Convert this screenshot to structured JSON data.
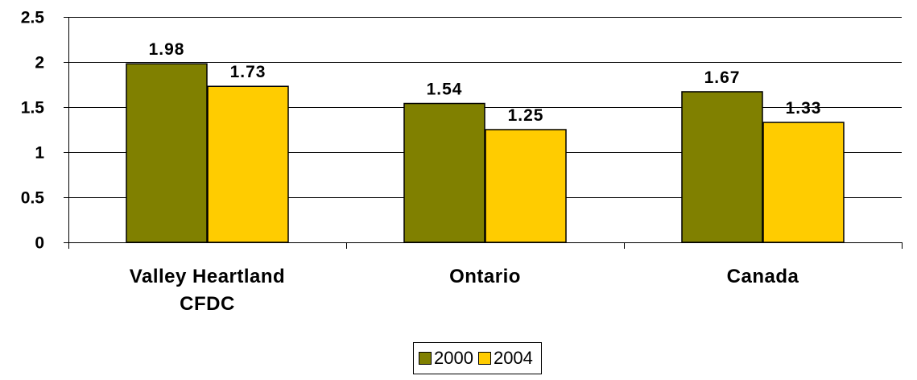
{
  "chart_data": {
    "type": "bar",
    "title": "",
    "xlabel": "",
    "ylabel": "",
    "categories": [
      [
        "Valley Heartland",
        "CFDC"
      ],
      [
        "Ontario"
      ],
      [
        "Canada"
      ]
    ],
    "series": [
      {
        "name": "2000",
        "values": [
          1.98,
          1.54,
          1.67
        ],
        "color": "#808000"
      },
      {
        "name": "2004",
        "values": [
          1.73,
          1.25,
          1.33
        ],
        "color": "#FFCC00"
      }
    ],
    "data_labels": [
      [
        "1.98",
        "1.54",
        "1.67"
      ],
      [
        "1.73",
        "1.25",
        "1.33"
      ]
    ],
    "ylim": [
      0,
      2.5
    ],
    "yticks": [
      0,
      0.5,
      1,
      1.5,
      2,
      2.5
    ],
    "ytick_labels": [
      "0",
      "0.5",
      "1",
      "1.5",
      "2",
      "2.5"
    ],
    "grid": true,
    "legend_position": "bottom-center"
  }
}
